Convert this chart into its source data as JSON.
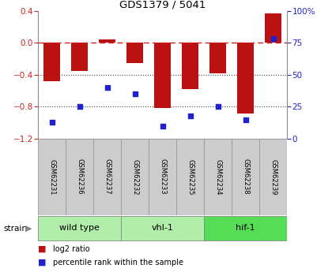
{
  "title": "GDS1379 / 5041",
  "samples": [
    "GSM62231",
    "GSM62236",
    "GSM62237",
    "GSM62232",
    "GSM62233",
    "GSM62235",
    "GSM62234",
    "GSM62238",
    "GSM62239"
  ],
  "log2_ratio": [
    -0.48,
    -0.35,
    0.04,
    -0.25,
    -0.82,
    -0.58,
    -0.38,
    -0.88,
    0.37
  ],
  "percentile_rank": [
    13,
    25,
    40,
    35,
    10,
    18,
    25,
    15,
    78
  ],
  "groups": [
    {
      "label": "wild type",
      "span": [
        0,
        3
      ],
      "color": "#b0eeaa"
    },
    {
      "label": "vhl-1",
      "span": [
        3,
        6
      ],
      "color": "#b0eeaa"
    },
    {
      "label": "hif-1",
      "span": [
        6,
        9
      ],
      "color": "#55dd55"
    }
  ],
  "ylim": [
    -1.2,
    0.4
  ],
  "yticks_left": [
    0.4,
    0.0,
    -0.4,
    -0.8,
    -1.2
  ],
  "yticks_right": [
    100,
    75,
    50,
    25,
    0
  ],
  "bar_color": "#bb1111",
  "dot_color": "#2222cc",
  "bar_width": 0.6,
  "zero_line_color": "#cc2222",
  "dot_line_color": "#404040",
  "bg_color": "#ffffff",
  "plot_bg": "#ffffff",
  "label_color_left": "#cc2222",
  "label_color_right": "#2222cc",
  "sample_box_color": "#cccccc",
  "sample_box_edge": "#999999"
}
